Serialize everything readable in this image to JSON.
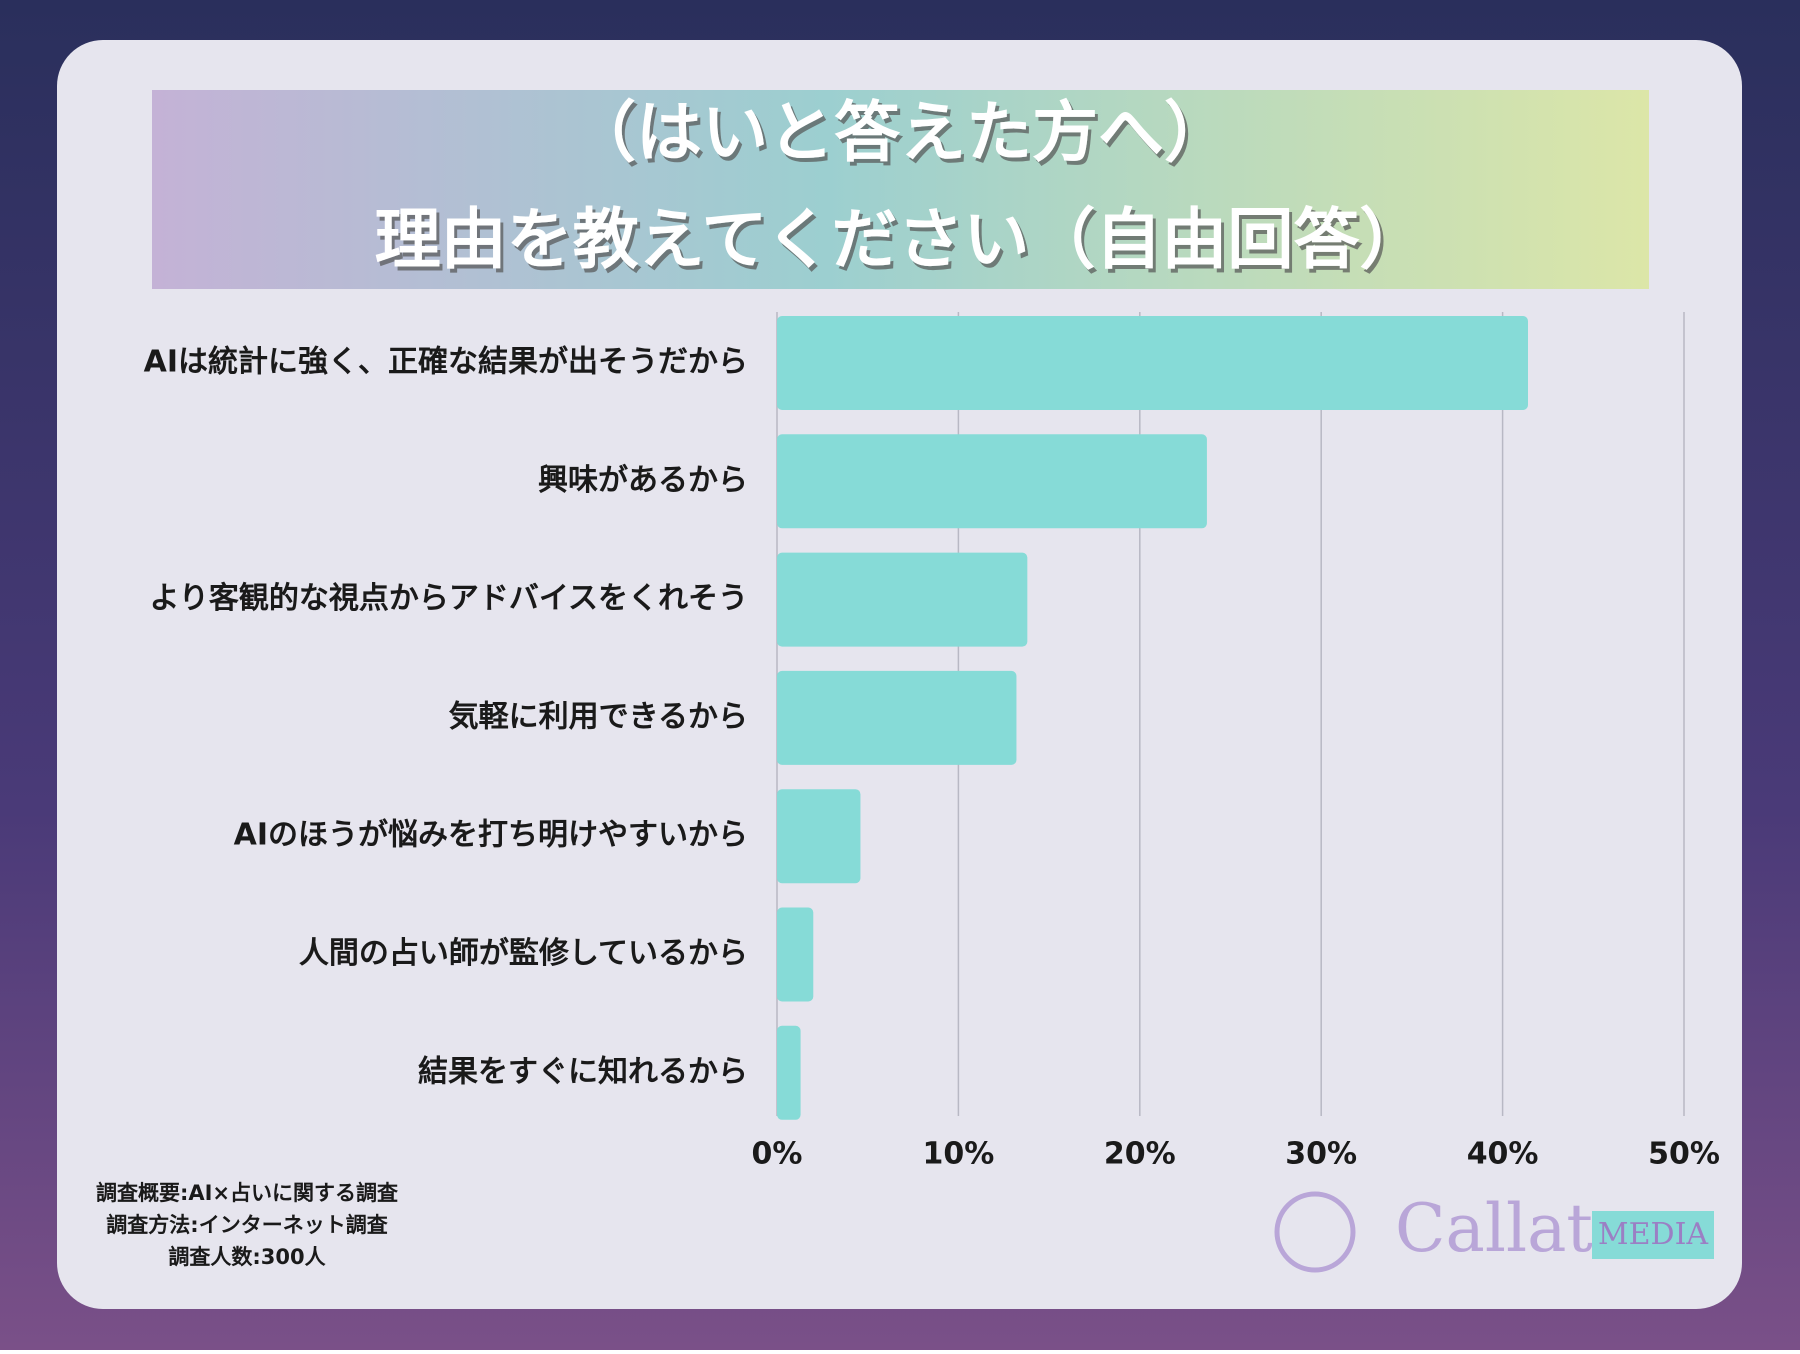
{
  "chart_data": {
    "type": "barh",
    "title": [
      "（はいと答えた方へ）",
      "理由を教えてください（自由回答）"
    ],
    "categories": [
      "AIは統計に強く、正確な結果が出そうだから",
      "興味があるから",
      "より客観的な視点からアドバイスをくれそう",
      "気軽に利用できるから",
      "AIのほうが悩みを打ち明けやすいから",
      "人間の占い師が監修しているから",
      "結果をすぐに知れるから"
    ],
    "values": [
      41.4,
      23.7,
      13.8,
      13.2,
      4.6,
      2.0,
      1.3
    ],
    "color": "#86dbd7",
    "xlim": [
      0,
      50
    ],
    "xticks": [
      {
        "value": 0,
        "label": "0%"
      },
      {
        "value": 10,
        "label": "10%"
      },
      {
        "value": 20,
        "label": "20%"
      },
      {
        "value": 30,
        "label": "30%"
      },
      {
        "value": 40,
        "label": "40%"
      },
      {
        "value": 50,
        "label": "50%"
      }
    ],
    "grid": true,
    "notes": [
      "調査概要:AI×占いに関する調査",
      "調査方法:インターネット調査",
      "調査人数:300人"
    ]
  },
  "logo": {
    "name": "Callat",
    "tag": "MEDIA"
  }
}
